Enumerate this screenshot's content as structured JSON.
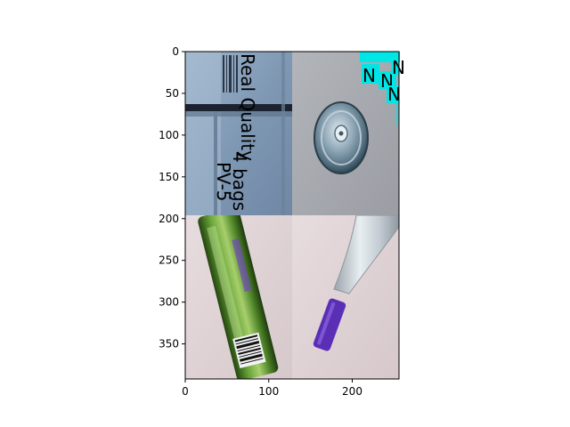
{
  "figure": {
    "x_ticks": [
      {
        "value": 0,
        "label": "0"
      },
      {
        "value": 100,
        "label": "100"
      },
      {
        "value": 200,
        "label": "200"
      }
    ],
    "y_ticks": [
      {
        "value": 0,
        "label": "0"
      },
      {
        "value": 50,
        "label": "50"
      },
      {
        "value": 100,
        "label": "100"
      },
      {
        "value": 150,
        "label": "150"
      },
      {
        "value": 200,
        "label": "200"
      },
      {
        "value": 250,
        "label": "250"
      },
      {
        "value": 300,
        "label": "300"
      },
      {
        "value": 350,
        "label": "350"
      }
    ],
    "x_range": [
      0,
      256
    ],
    "y_range": [
      0,
      392
    ],
    "panels": [
      {
        "name": "cardboard-box-panel",
        "text_lines": [
          "4 bags o",
          "PV-5"
        ],
        "header_text": "Real Quality"
      },
      {
        "name": "metal-lid-panel"
      },
      {
        "name": "green-can-panel"
      },
      {
        "name": "plastic-bottle-panel"
      }
    ],
    "detection_labels": [
      "N",
      "N",
      "N",
      "N"
    ],
    "colors": {
      "detection_box": "#00e5e5",
      "cardboard": "#8ea7c2",
      "gray_bg": "#a9acb1",
      "pink_bg": "#ddd0d3",
      "green_can": "#4f8a2c",
      "purple_cap": "#5b2fb5"
    }
  }
}
